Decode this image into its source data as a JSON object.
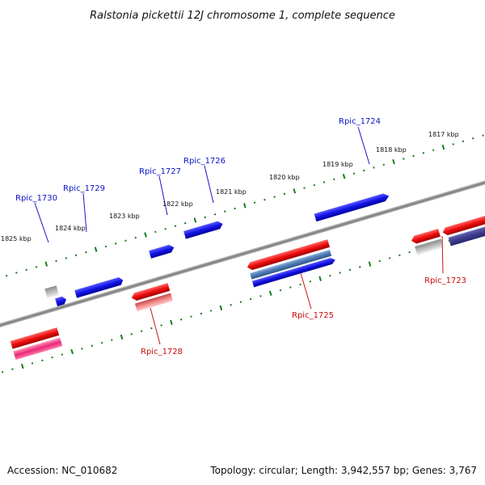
{
  "title": "Ralstonia pickettii 12J chromosome 1, complete sequence",
  "footer": {
    "accession": "Accession: NC_010682",
    "summary": "Topology: circular; Length: 3,942,557 bp; Genes: 3,767"
  },
  "scale_labels": [
    "1825 kbp",
    "1824 kbp",
    "1823 kbp",
    "1822 kbp",
    "1821 kbp",
    "1820 kbp",
    "1819 kbp",
    "1818 kbp",
    "1817 kbp"
  ],
  "gene_labels_forward": [
    "Rpic_1730",
    "Rpic_1729",
    "Rpic_1727",
    "Rpic_1726",
    "Rpic_1724"
  ],
  "gene_labels_reverse": [
    "Rpic_1728",
    "Rpic_1725",
    "Rpic_1723"
  ],
  "colors": {
    "forward_label": "#0a14c8",
    "reverse_label": "#c80a0a",
    "tick": "#1a7a1a",
    "backbone": "#808080",
    "forward_gene": "#1010e0",
    "reverse_gene": "#e01010"
  }
}
